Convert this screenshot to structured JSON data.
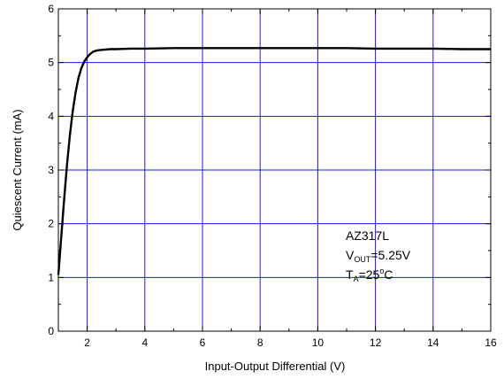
{
  "chart_data": {
    "type": "line",
    "title": "",
    "xlabel": "Input-Output Differential (V)",
    "ylabel": "Quiescent Current (mA)",
    "xlim": [
      1,
      16
    ],
    "ylim": [
      0,
      6
    ],
    "x_ticks": [
      2,
      4,
      6,
      8,
      10,
      12,
      14,
      16
    ],
    "y_ticks": [
      0,
      1,
      2,
      3,
      4,
      5,
      6
    ],
    "x_grid": [
      2,
      4,
      6,
      8,
      10,
      12,
      14
    ],
    "y_grid": [
      1,
      2,
      3,
      4,
      5
    ],
    "grid": true,
    "grid_color": "#1a1adf",
    "line_color": "#000000",
    "series": [
      {
        "x": [
          1.0,
          1.1,
          1.2,
          1.3,
          1.4,
          1.5,
          1.6,
          1.7,
          1.8,
          1.9,
          2.0,
          2.1,
          2.2,
          2.3,
          2.4,
          2.6,
          2.8,
          3.0,
          3.5,
          4,
          5,
          6,
          7,
          8,
          9,
          10,
          11,
          12,
          13,
          14,
          15,
          16
        ],
        "y": [
          1.05,
          1.75,
          2.45,
          3.1,
          3.65,
          4.1,
          4.45,
          4.72,
          4.9,
          5.02,
          5.1,
          5.16,
          5.2,
          5.22,
          5.23,
          5.24,
          5.25,
          5.25,
          5.26,
          5.26,
          5.27,
          5.27,
          5.27,
          5.27,
          5.27,
          5.27,
          5.27,
          5.26,
          5.26,
          5.26,
          5.25,
          5.25
        ]
      }
    ],
    "annotation": {
      "line1": "AZ317L",
      "line2_main": "V",
      "line2_sub": "OUT",
      "line2_rest": "=5.25V",
      "line3_main": "T",
      "line3_sub": "A",
      "line3_rest": "=25",
      "line3_deg": "o",
      "line3_unit": "C"
    }
  }
}
